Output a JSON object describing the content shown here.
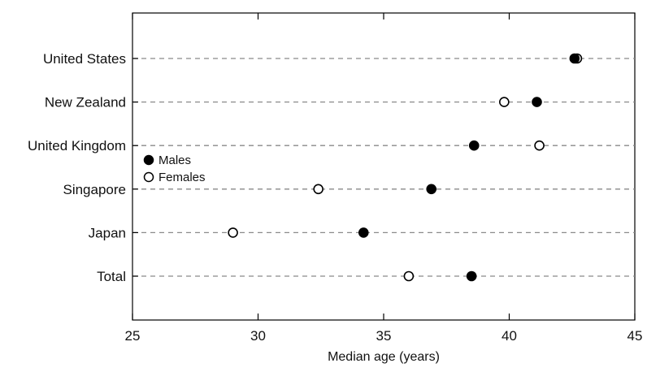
{
  "chart_data": {
    "type": "scatter",
    "xlabel": "Median age (years)",
    "ylabel": "",
    "xlim": [
      25,
      45
    ],
    "xticks": [
      25,
      30,
      35,
      40,
      45
    ],
    "xtick_labels": [
      "25",
      "30",
      "35",
      "40",
      "45"
    ],
    "grid": "dashed horizontal lines per category",
    "categories": [
      "United States",
      "New Zealand",
      "United Kingdom",
      "Singapore",
      "Japan",
      "Total"
    ],
    "series": [
      {
        "name": "Males",
        "marker": "filled-circle",
        "color": "#000000",
        "values": [
          42.6,
          41.1,
          38.6,
          36.9,
          34.2,
          38.5
        ]
      },
      {
        "name": "Females",
        "marker": "open-circle",
        "color": "#ffffff",
        "values": [
          42.7,
          39.8,
          41.2,
          32.4,
          29.0,
          36.0
        ]
      }
    ],
    "legend": {
      "placement": "middle-left"
    }
  }
}
